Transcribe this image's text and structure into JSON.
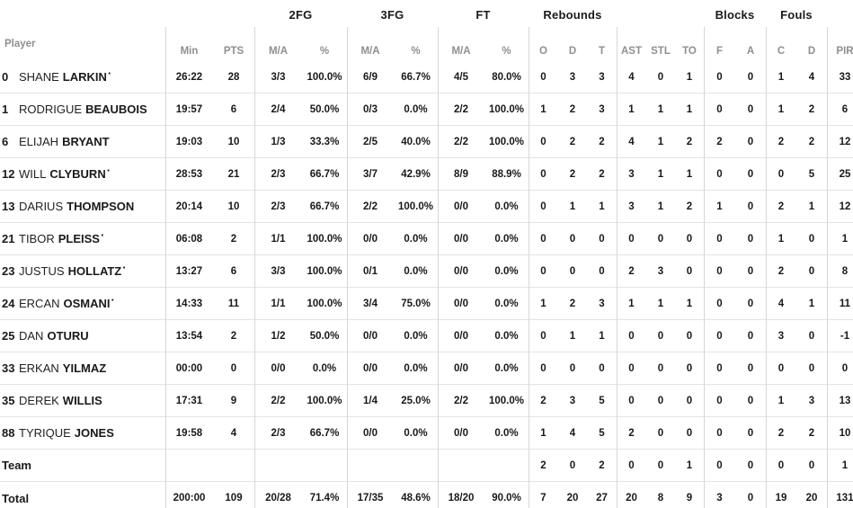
{
  "colors": {
    "text": "#1a1a1a",
    "muted_header": "#8f8f8f",
    "grid_line": "#d6d6d6",
    "row_line": "#e3e3e3"
  },
  "table": {
    "player_col_label": "Player",
    "starter_mark": "·",
    "groups": [
      {
        "label": "2FG"
      },
      {
        "label": "3FG"
      },
      {
        "label": "FT"
      },
      {
        "label": "Rebounds"
      },
      {
        "label": "Blocks"
      },
      {
        "label": "Fouls"
      }
    ],
    "sub_cols": [
      "Min",
      "PTS",
      "M/A",
      "%",
      "M/A",
      "%",
      "M/A",
      "%",
      "O",
      "D",
      "T",
      "AST",
      "STL",
      "TO",
      "F",
      "A",
      "C",
      "D",
      "PIR"
    ],
    "rows": [
      {
        "num": "0",
        "first": "SHANE",
        "last": "LARKIN",
        "starter": true,
        "cells": [
          "26:22",
          "28",
          "3/3",
          "100.0%",
          "6/9",
          "66.7%",
          "4/5",
          "80.0%",
          "0",
          "3",
          "3",
          "4",
          "0",
          "1",
          "0",
          "0",
          "1",
          "4",
          "33"
        ]
      },
      {
        "num": "1",
        "first": "RODRIGUE",
        "last": "BEAUBOIS",
        "starter": false,
        "cells": [
          "19:57",
          "6",
          "2/4",
          "50.0%",
          "0/3",
          "0.0%",
          "2/2",
          "100.0%",
          "1",
          "2",
          "3",
          "1",
          "1",
          "1",
          "0",
          "0",
          "1",
          "2",
          "6"
        ]
      },
      {
        "num": "6",
        "first": "ELIJAH",
        "last": "BRYANT",
        "starter": false,
        "cells": [
          "19:03",
          "10",
          "1/3",
          "33.3%",
          "2/5",
          "40.0%",
          "2/2",
          "100.0%",
          "0",
          "2",
          "2",
          "4",
          "1",
          "2",
          "2",
          "0",
          "2",
          "2",
          "12"
        ]
      },
      {
        "num": "12",
        "first": "WILL",
        "last": "CLYBURN",
        "starter": true,
        "cells": [
          "28:53",
          "21",
          "2/3",
          "66.7%",
          "3/7",
          "42.9%",
          "8/9",
          "88.9%",
          "0",
          "2",
          "2",
          "3",
          "1",
          "1",
          "0",
          "0",
          "0",
          "5",
          "25"
        ]
      },
      {
        "num": "13",
        "first": "DARIUS",
        "last": "THOMPSON",
        "starter": false,
        "cells": [
          "20:14",
          "10",
          "2/3",
          "66.7%",
          "2/2",
          "100.0%",
          "0/0",
          "0.0%",
          "0",
          "1",
          "1",
          "3",
          "1",
          "2",
          "1",
          "0",
          "2",
          "1",
          "12"
        ]
      },
      {
        "num": "21",
        "first": "TIBOR",
        "last": "PLEISS",
        "starter": true,
        "cells": [
          "06:08",
          "2",
          "1/1",
          "100.0%",
          "0/0",
          "0.0%",
          "0/0",
          "0.0%",
          "0",
          "0",
          "0",
          "0",
          "0",
          "0",
          "0",
          "0",
          "1",
          "0",
          "1"
        ]
      },
      {
        "num": "23",
        "first": "JUSTUS",
        "last": "HOLLATZ",
        "starter": true,
        "cells": [
          "13:27",
          "6",
          "3/3",
          "100.0%",
          "0/1",
          "0.0%",
          "0/0",
          "0.0%",
          "0",
          "0",
          "0",
          "2",
          "3",
          "0",
          "0",
          "0",
          "2",
          "0",
          "8"
        ]
      },
      {
        "num": "24",
        "first": "ERCAN",
        "last": "OSMANI",
        "starter": true,
        "cells": [
          "14:33",
          "11",
          "1/1",
          "100.0%",
          "3/4",
          "75.0%",
          "0/0",
          "0.0%",
          "1",
          "2",
          "3",
          "1",
          "1",
          "1",
          "0",
          "0",
          "4",
          "1",
          "11"
        ]
      },
      {
        "num": "25",
        "first": "DAN",
        "last": "OTURU",
        "starter": false,
        "cells": [
          "13:54",
          "2",
          "1/2",
          "50.0%",
          "0/0",
          "0.0%",
          "0/0",
          "0.0%",
          "0",
          "1",
          "1",
          "0",
          "0",
          "0",
          "0",
          "0",
          "3",
          "0",
          "-1"
        ]
      },
      {
        "num": "33",
        "first": "ERKAN",
        "last": "YILMAZ",
        "starter": false,
        "cells": [
          "00:00",
          "0",
          "0/0",
          "0.0%",
          "0/0",
          "0.0%",
          "0/0",
          "0.0%",
          "0",
          "0",
          "0",
          "0",
          "0",
          "0",
          "0",
          "0",
          "0",
          "0",
          "0"
        ]
      },
      {
        "num": "35",
        "first": "DEREK",
        "last": "WILLIS",
        "starter": false,
        "cells": [
          "17:31",
          "9",
          "2/2",
          "100.0%",
          "1/4",
          "25.0%",
          "2/2",
          "100.0%",
          "2",
          "3",
          "5",
          "0",
          "0",
          "0",
          "0",
          "0",
          "1",
          "3",
          "13"
        ]
      },
      {
        "num": "88",
        "first": "TYRIQUE",
        "last": "JONES",
        "starter": false,
        "cells": [
          "19:58",
          "4",
          "2/3",
          "66.7%",
          "0/0",
          "0.0%",
          "0/0",
          "0.0%",
          "1",
          "4",
          "5",
          "2",
          "0",
          "0",
          "0",
          "0",
          "2",
          "2",
          "10"
        ]
      },
      {
        "label": "Team",
        "cells": [
          "",
          "",
          "",
          "",
          "",
          "",
          "",
          "",
          "2",
          "0",
          "2",
          "0",
          "0",
          "1",
          "0",
          "0",
          "0",
          "0",
          "1"
        ]
      },
      {
        "label": "Total",
        "cells": [
          "200:00",
          "109",
          "20/28",
          "71.4%",
          "17/35",
          "48.6%",
          "18/20",
          "90.0%",
          "7",
          "20",
          "27",
          "20",
          "8",
          "9",
          "3",
          "0",
          "19",
          "20",
          "131"
        ]
      }
    ]
  }
}
